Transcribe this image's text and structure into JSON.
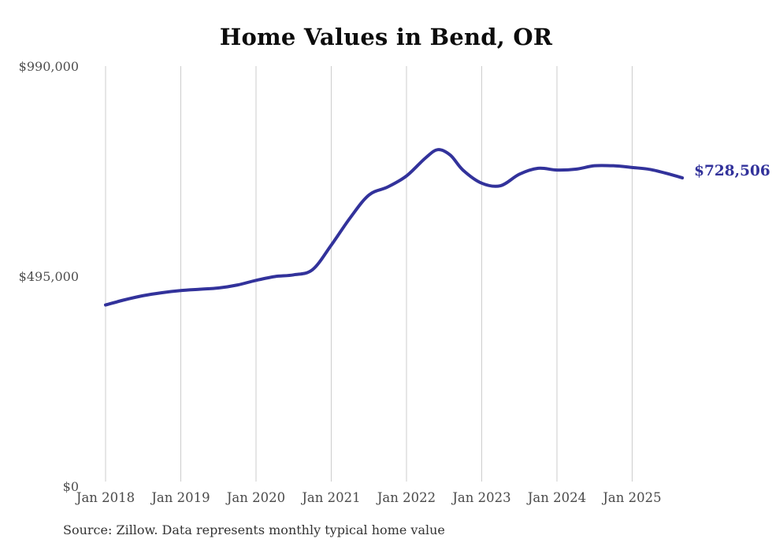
{
  "page": {
    "background_color": "#ffffff"
  },
  "source_note": "Source: Zillow. Data represents monthly typical home value",
  "chart_data": {
    "type": "line",
    "title": "Home Values in Bend, OR",
    "series_name": "Monthly typical home value",
    "xlabel": "",
    "ylabel": "",
    "ylim": [
      0,
      990000
    ],
    "grid": "vertical-only",
    "legend": "none",
    "line_color": "#32329b",
    "gridline_color": "#cdcdcd",
    "tick_label_color": "#4a4a4a",
    "end_label": "$728,506",
    "end_label_color": "#32329b",
    "y_ticks": [
      {
        "value": 0,
        "label": "$0"
      },
      {
        "value": 495000,
        "label": "$495,000"
      },
      {
        "value": 990000,
        "label": "$990,000"
      }
    ],
    "x_tick_labels": [
      "Jan 2018",
      "Jan 2019",
      "Jan 2020",
      "Jan 2021",
      "Jan 2022",
      "Jan 2023",
      "Jan 2024",
      "Jan 2025"
    ],
    "points": [
      {
        "date": "Jan 2018",
        "value": 429000
      },
      {
        "date": "Apr 2018",
        "value": 441000
      },
      {
        "date": "Jul 2018",
        "value": 451000
      },
      {
        "date": "Oct 2018",
        "value": 458000
      },
      {
        "date": "Jan 2019",
        "value": 463000
      },
      {
        "date": "Apr 2019",
        "value": 466000
      },
      {
        "date": "Jul 2019",
        "value": 469000
      },
      {
        "date": "Oct 2019",
        "value": 476000
      },
      {
        "date": "Jan 2020",
        "value": 487000
      },
      {
        "date": "Apr 2020",
        "value": 496000
      },
      {
        "date": "Jul 2020",
        "value": 500000
      },
      {
        "date": "Oct 2020",
        "value": 512000
      },
      {
        "date": "Jan 2021",
        "value": 570000
      },
      {
        "date": "Apr 2021",
        "value": 634000
      },
      {
        "date": "Jul 2021",
        "value": 688000
      },
      {
        "date": "Oct 2021",
        "value": 707000
      },
      {
        "date": "Jan 2022",
        "value": 733000
      },
      {
        "date": "Apr 2022",
        "value": 775000
      },
      {
        "date": "Jun 2022",
        "value": 795000
      },
      {
        "date": "Aug 2022",
        "value": 782000
      },
      {
        "date": "Oct 2022",
        "value": 747000
      },
      {
        "date": "Jan 2023",
        "value": 716000
      },
      {
        "date": "Apr 2023",
        "value": 710000
      },
      {
        "date": "Jul 2023",
        "value": 737000
      },
      {
        "date": "Oct 2023",
        "value": 751000
      },
      {
        "date": "Jan 2024",
        "value": 747000
      },
      {
        "date": "Apr 2024",
        "value": 749000
      },
      {
        "date": "Jul 2024",
        "value": 757000
      },
      {
        "date": "Oct 2024",
        "value": 757000
      },
      {
        "date": "Jan 2025",
        "value": 753000
      },
      {
        "date": "Apr 2025",
        "value": 748000
      },
      {
        "date": "Jul 2025",
        "value": 737000
      },
      {
        "date": "Sep 2025",
        "value": 728506
      }
    ]
  }
}
